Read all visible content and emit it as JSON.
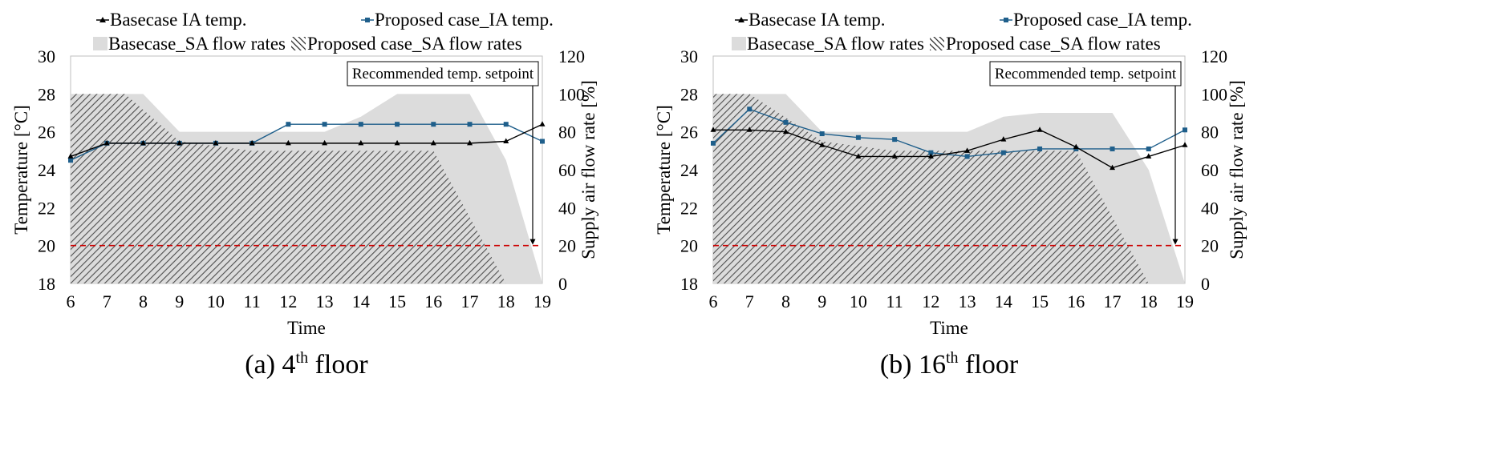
{
  "legend": {
    "base_temp": "Basecase  IA temp.",
    "prop_temp": "Proposed case_IA temp.",
    "base_flow": "Basecase_SA flow rates",
    "prop_flow": "Proposed case_SA flow rates"
  },
  "colors": {
    "base_temp_line": "#000000",
    "prop_temp_line": "#1f5f8b",
    "base_flow_fill": "#dcdcdc",
    "prop_flow_hatch": "#555555",
    "reference_line": "#cc0000"
  },
  "chart_data": [
    {
      "type": "line",
      "caption_prefix": "(a) 4",
      "caption_sup": "th",
      "caption_suffix": " floor",
      "xlabel": "Time",
      "ylabel": "Temperature [°C]",
      "ylabel_right": "Supply air flow rate [%]",
      "xlim": [
        6,
        19
      ],
      "ylim": [
        18,
        30
      ],
      "ylim_right": [
        0,
        120
      ],
      "x_ticks": [
        6,
        7,
        8,
        9,
        10,
        11,
        12,
        13,
        14,
        15,
        16,
        17,
        18,
        19
      ],
      "y_ticks": [
        18,
        20,
        22,
        24,
        26,
        28,
        30
      ],
      "y_ticks_right": [
        0,
        20,
        40,
        60,
        80,
        100,
        120
      ],
      "reference_line_y": 20,
      "annotation": "Recommended temp. setpoint",
      "x": [
        6,
        7,
        8,
        9,
        10,
        11,
        12,
        13,
        14,
        15,
        16,
        17,
        18,
        19
      ],
      "series": [
        {
          "key": "base_temp",
          "axis": "left",
          "kind": "line",
          "values": [
            24.7,
            25.4,
            25.4,
            25.4,
            25.4,
            25.4,
            25.4,
            25.4,
            25.4,
            25.4,
            25.4,
            25.4,
            25.5,
            26.4
          ]
        },
        {
          "key": "prop_temp",
          "axis": "left",
          "kind": "line",
          "values": [
            24.5,
            25.4,
            25.4,
            25.4,
            25.4,
            25.4,
            26.4,
            26.4,
            26.4,
            26.4,
            26.4,
            26.4,
            26.4,
            25.5
          ]
        },
        {
          "key": "base_flow",
          "axis": "right",
          "kind": "area",
          "x": [
            6,
            8,
            9,
            13,
            14,
            15,
            17,
            18,
            19
          ],
          "values": [
            100,
            100,
            80,
            80,
            88,
            100,
            100,
            65,
            0
          ]
        },
        {
          "key": "prop_flow",
          "axis": "right",
          "kind": "hatch",
          "x": [
            6,
            7.5,
            9,
            11,
            16,
            18
          ],
          "values": [
            100,
            100,
            75,
            70,
            70,
            0
          ]
        }
      ]
    },
    {
      "type": "line",
      "caption_prefix": "(b) 16",
      "caption_sup": "th",
      "caption_suffix": " floor",
      "xlabel": "Time",
      "ylabel": "Temperature [°C]",
      "ylabel_right": "Supply air flow rate [%]",
      "xlim": [
        6,
        19
      ],
      "ylim": [
        18,
        30
      ],
      "ylim_right": [
        0,
        120
      ],
      "x_ticks": [
        6,
        7,
        8,
        9,
        10,
        11,
        12,
        13,
        14,
        15,
        16,
        17,
        18,
        19
      ],
      "y_ticks": [
        18,
        20,
        22,
        24,
        26,
        28,
        30
      ],
      "y_ticks_right": [
        0,
        20,
        40,
        60,
        80,
        100,
        120
      ],
      "reference_line_y": 20,
      "annotation": "Recommended temp. setpoint",
      "x": [
        6,
        7,
        8,
        9,
        10,
        11,
        12,
        13,
        14,
        15,
        16,
        17,
        18,
        19
      ],
      "series": [
        {
          "key": "base_temp",
          "axis": "left",
          "kind": "line",
          "values": [
            26.1,
            26.1,
            26.0,
            25.3,
            24.7,
            24.7,
            24.7,
            25.0,
            25.6,
            26.1,
            25.2,
            24.1,
            24.7,
            25.3
          ]
        },
        {
          "key": "prop_temp",
          "axis": "left",
          "kind": "line",
          "values": [
            25.4,
            27.2,
            26.5,
            25.9,
            25.7,
            25.6,
            24.9,
            24.7,
            24.9,
            25.1,
            25.1,
            25.1,
            25.1,
            26.1
          ]
        },
        {
          "key": "base_flow",
          "axis": "right",
          "kind": "area",
          "x": [
            6,
            8,
            9,
            13,
            14,
            15,
            17,
            18,
            19
          ],
          "values": [
            100,
            100,
            80,
            80,
            88,
            90,
            90,
            60,
            0
          ]
        },
        {
          "key": "prop_flow",
          "axis": "right",
          "kind": "hatch",
          "x": [
            6,
            7,
            9,
            11,
            16,
            18
          ],
          "values": [
            100,
            100,
            75,
            70,
            70,
            0
          ]
        }
      ]
    }
  ]
}
